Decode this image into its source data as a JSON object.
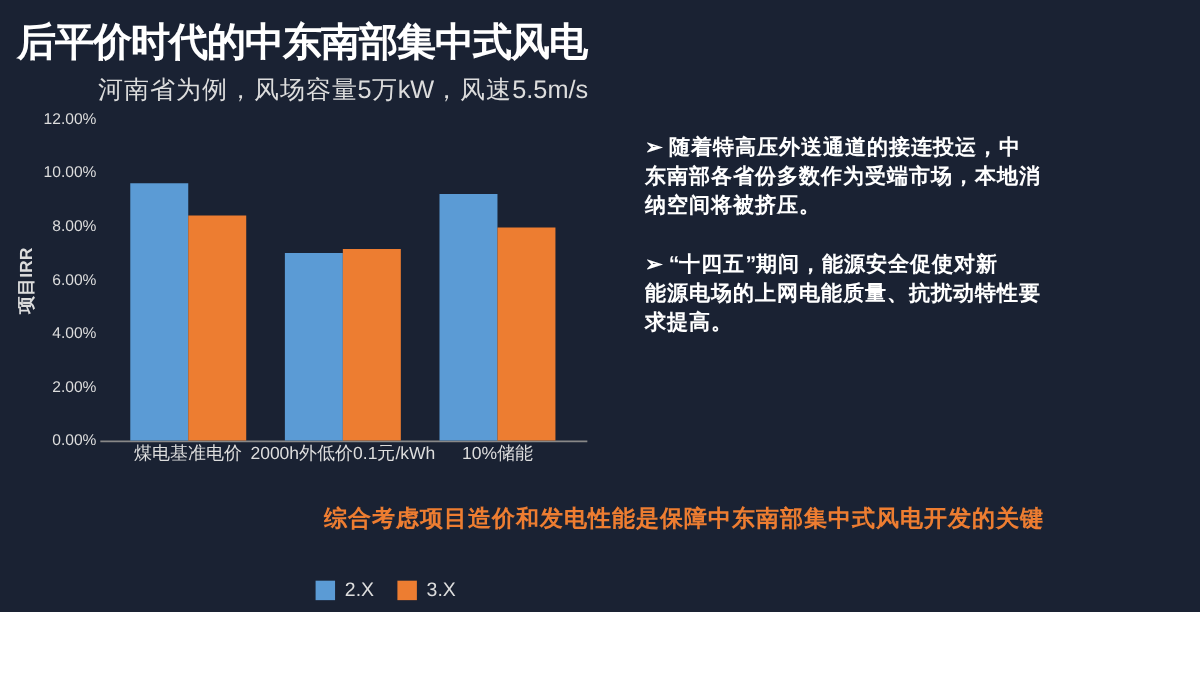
{
  "chart_data": [
    {
      "type": "bar",
      "title": "后平价时代的中东南部集中式风电",
      "subtitle": "河南省为例，风场容量5万kW，风速5.5m/s",
      "ylabel": "项目IRR",
      "categories": [
        "煤电基准电价",
        "2000h外低价0.1元/kWh",
        "10%储能"
      ],
      "series": [
        {
          "name": "2.X",
          "color": "#5b9bd5",
          "values": [
            9.6,
            7.0,
            9.2
          ]
        },
        {
          "name": "3.X",
          "color": "#ed7d31",
          "values": [
            8.4,
            7.15,
            7.95
          ]
        }
      ],
      "ylim": [
        0,
        12
      ],
      "yticks": [
        {
          "value": 0,
          "label": "0.00%"
        },
        {
          "value": 2,
          "label": "2.00%"
        },
        {
          "value": 4,
          "label": "4.00%"
        },
        {
          "value": 6,
          "label": "6.00%"
        },
        {
          "value": 8,
          "label": "8.00%"
        },
        {
          "value": 10,
          "label": "10.00%"
        },
        {
          "value": 12,
          "label": "12.00%"
        }
      ],
      "grid": false,
      "legend": "bottom",
      "annotations": [
        "综合考虑项目造价和发电性能是保障中东南部集中式风电开发的关键"
      ]
    },
    {
      "type": "other",
      "annotations": [
        "➢ 随着特高压外送通道的接连投运，中东南部各省份多数作为受端市场，本地消纳空间将被挤压。",
        "➢ “十四五”期间，能源安全促使对新能源电场的上网电能质量、抗扰动特性要求提高。"
      ]
    }
  ]
}
